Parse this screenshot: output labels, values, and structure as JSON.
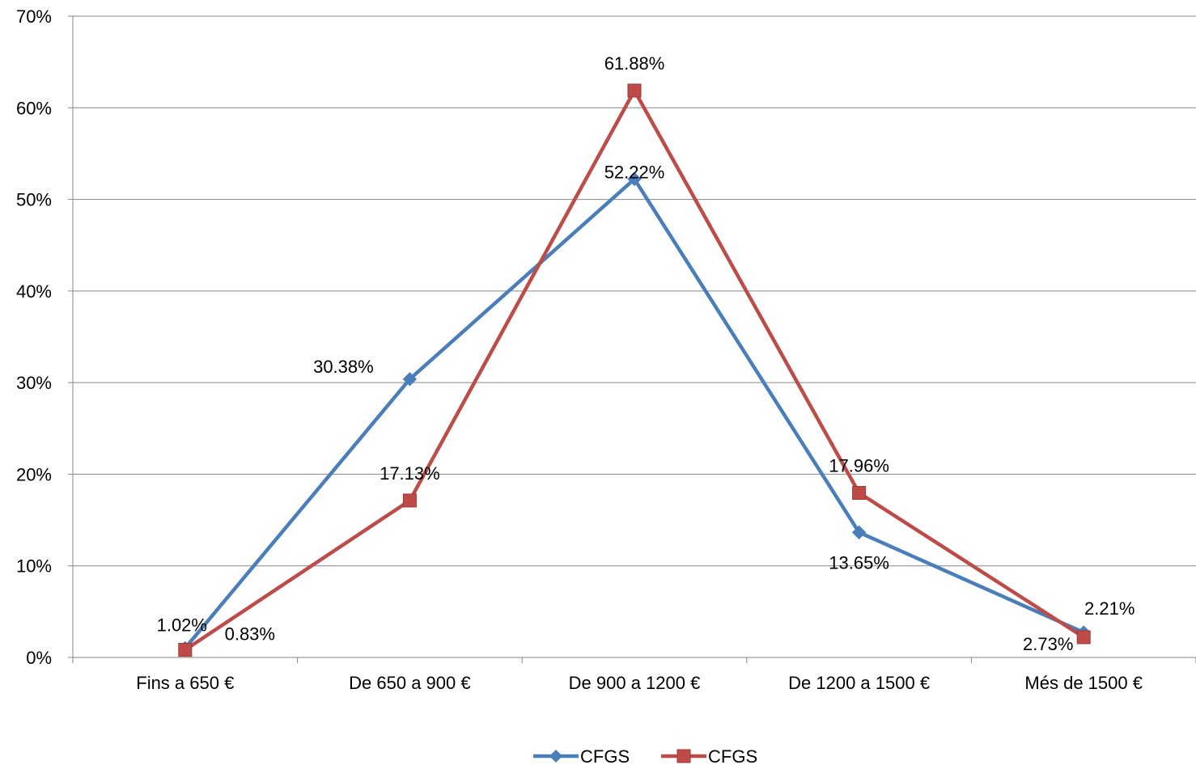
{
  "chart_data": {
    "type": "line",
    "categories": [
      "Fins a 650 €",
      "De 650 a 900 €",
      "De 900 a 1200 €",
      "De 1200 a 1500 €",
      "Més de 1500 €"
    ],
    "series": [
      {
        "name": "CFGS",
        "color": "#4A7EBB",
        "marker": "diamond",
        "values": [
          1.02,
          30.38,
          52.22,
          13.65,
          2.73
        ],
        "labels": [
          "1.02%",
          "30.38%",
          "52.22%",
          "13.65%",
          "2.73%"
        ]
      },
      {
        "name": "CFGS",
        "color": "#BE4B48",
        "marker": "square",
        "values": [
          0.83,
          17.13,
          61.88,
          17.96,
          2.21
        ],
        "labels": [
          "0.83%",
          "17.13%",
          "61.88%",
          "17.96%",
          "2.21%"
        ]
      }
    ],
    "yticks": [
      "0%",
      "10%",
      "20%",
      "30%",
      "40%",
      "50%",
      "60%",
      "70%"
    ],
    "ylim": [
      0,
      70
    ],
    "grid": true,
    "legend": "bottom"
  }
}
